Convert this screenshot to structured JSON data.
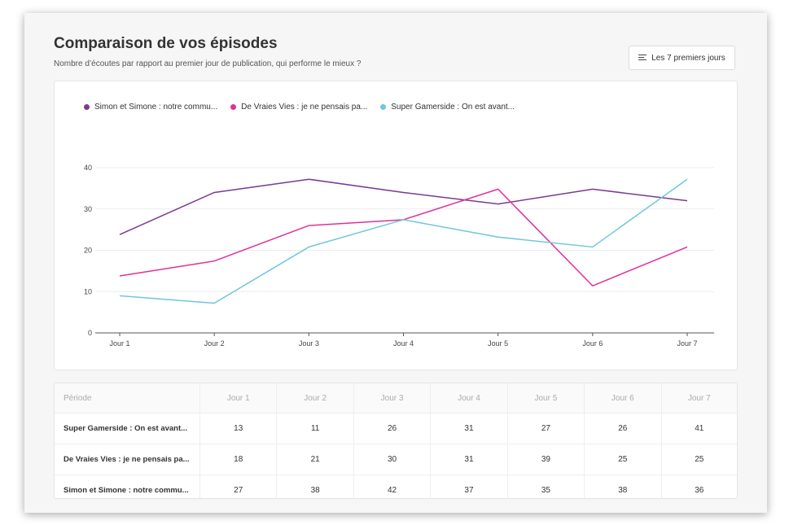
{
  "header": {
    "title": "Comparaison de vos épisodes",
    "subtitle": "Nombre d’écoutes par rapport au premier jour de publication, qui performe le mieux ?",
    "range_label": "Les 7 premiers jours",
    "range_icon": "filter-lines-icon"
  },
  "chart_data": {
    "type": "line",
    "x": [
      "Jour 1",
      "Jour 2",
      "Jour 3",
      "Jour 4",
      "Jour 5",
      "Jour 6",
      "Jour 7"
    ],
    "ylim": [
      0,
      40
    ],
    "yticks": [
      0,
      10,
      20,
      30,
      40
    ],
    "grid": true,
    "legend_position": "top-left",
    "series": [
      {
        "name": "Simon et Simone : notre commu...",
        "color": "#7b3a91",
        "values": [
          23.8,
          34,
          37.2,
          34,
          31.2,
          34.8,
          32
        ]
      },
      {
        "name": "De Vraies Vies : je ne pensais pa...",
        "color": "#e0309a",
        "values": [
          13.8,
          17.4,
          26,
          27.4,
          34.8,
          11.4,
          20.8
        ]
      },
      {
        "name": "Super Gamerside : On est avant...",
        "color": "#6fc6de",
        "values": [
          9,
          7.2,
          20.8,
          27.4,
          23.2,
          20.8,
          37.2
        ]
      }
    ]
  },
  "table": {
    "period_label": "Période",
    "columns": [
      "Jour 1",
      "Jour 2",
      "Jour 3",
      "Jour 4",
      "Jour 5",
      "Jour 6",
      "Jour 7"
    ],
    "rows": [
      {
        "label": "Super Gamerside : On est avant...",
        "values": [
          13,
          11,
          26,
          31,
          27,
          26,
          41
        ]
      },
      {
        "label": "De Vraies Vies : je ne pensais pa...",
        "values": [
          18,
          21,
          30,
          31,
          39,
          25,
          25
        ]
      },
      {
        "label": "Simon et Simone : notre commu...",
        "values": [
          27,
          38,
          42,
          37,
          35,
          38,
          36
        ]
      }
    ]
  }
}
